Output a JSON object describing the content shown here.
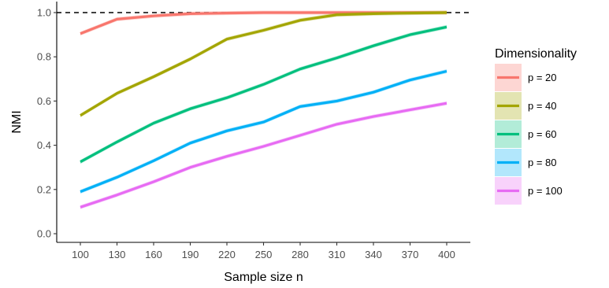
{
  "chart_data": {
    "type": "line",
    "title": "",
    "xlabel": "Sample size n",
    "ylabel": "NMI",
    "x": [
      100,
      130,
      160,
      190,
      220,
      250,
      280,
      310,
      340,
      370,
      400
    ],
    "xlim": [
      100,
      400
    ],
    "ylim": [
      0.0,
      1.0
    ],
    "y_ticks": [
      "0.0",
      "0.2",
      "0.4",
      "0.6",
      "0.8",
      "1.0"
    ],
    "x_ticks": [
      "100",
      "130",
      "160",
      "190",
      "220",
      "250",
      "280",
      "310",
      "340",
      "370",
      "400"
    ],
    "reference_line": {
      "y": 1.0,
      "style": "dashed"
    },
    "grid": false,
    "legend": {
      "title": "Dimensionality",
      "position": "right"
    },
    "series": [
      {
        "name": "p = 20",
        "color": "#F8766D",
        "values": [
          0.905,
          0.97,
          0.985,
          0.995,
          0.998,
          1.0,
          1.0,
          1.0,
          1.0,
          1.0,
          1.0
        ]
      },
      {
        "name": "p = 40",
        "color": "#A3A500",
        "values": [
          0.535,
          0.635,
          0.71,
          0.79,
          0.88,
          0.92,
          0.965,
          0.99,
          0.995,
          0.998,
          1.0
        ]
      },
      {
        "name": "p = 60",
        "color": "#00BF7D",
        "values": [
          0.325,
          0.415,
          0.5,
          0.565,
          0.615,
          0.675,
          0.745,
          0.795,
          0.85,
          0.9,
          0.935
        ]
      },
      {
        "name": "p = 80",
        "color": "#00B0F6",
        "values": [
          0.19,
          0.255,
          0.33,
          0.41,
          0.465,
          0.505,
          0.575,
          0.6,
          0.64,
          0.695,
          0.735
        ]
      },
      {
        "name": "p = 100",
        "color": "#E76BF3",
        "values": [
          0.12,
          0.175,
          0.235,
          0.3,
          0.35,
          0.395,
          0.445,
          0.495,
          0.53,
          0.56,
          0.59
        ]
      }
    ]
  }
}
